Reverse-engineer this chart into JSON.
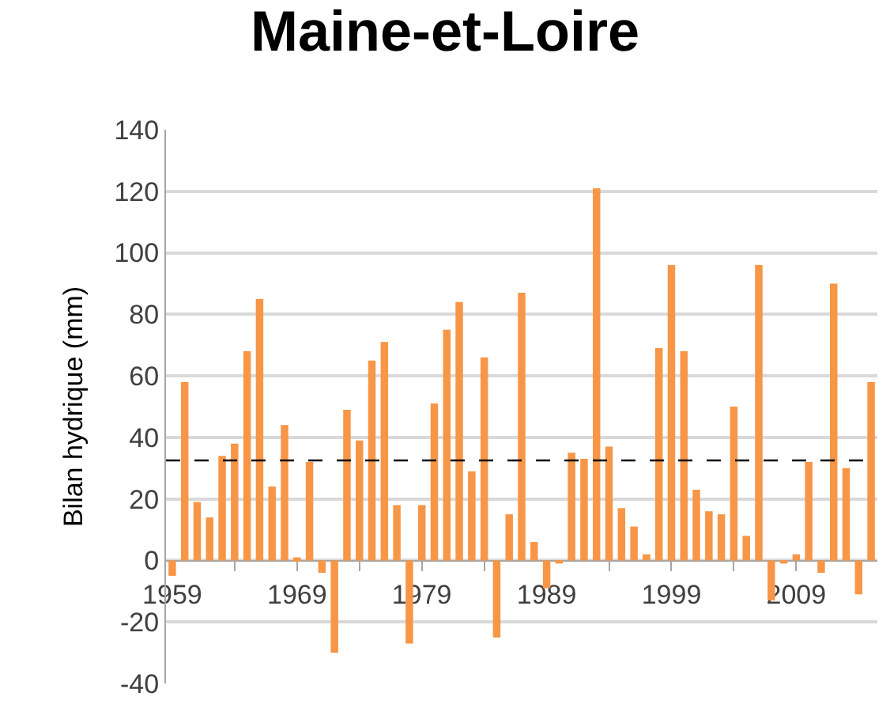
{
  "chart_data": {
    "type": "bar",
    "title": "Maine-et-Loire",
    "ylabel": "Bilan hydrique (mm)",
    "x": [
      1959,
      1960,
      1961,
      1962,
      1963,
      1964,
      1965,
      1966,
      1967,
      1968,
      1969,
      1970,
      1971,
      1972,
      1973,
      1974,
      1975,
      1976,
      1977,
      1978,
      1979,
      1980,
      1981,
      1982,
      1983,
      1984,
      1985,
      1986,
      1987,
      1988,
      1989,
      1990,
      1991,
      1992,
      1993,
      1994,
      1995,
      1996,
      1997,
      1998,
      1999,
      2000,
      2001,
      2002,
      2003,
      2004,
      2005,
      2006,
      2007,
      2008,
      2009,
      2010,
      2011,
      2012,
      2013,
      2014,
      2015
    ],
    "series": [
      {
        "color": "#f79646",
        "values": [
          -5,
          58,
          19,
          14,
          34,
          38,
          68,
          85,
          24,
          44,
          1,
          32,
          -4,
          -30,
          49,
          39,
          65,
          71,
          18,
          -27,
          18,
          51,
          75,
          84,
          29,
          66,
          -25,
          15,
          87,
          6,
          -9,
          -1,
          35,
          33,
          121,
          37,
          17,
          11,
          2,
          69,
          96,
          68,
          23,
          16,
          15,
          50,
          8,
          96,
          -13,
          -1,
          2,
          32,
          -4,
          90,
          30,
          -11,
          58
        ]
      }
    ],
    "xlim": [
      1958.5,
      2015.5
    ],
    "xticks": [
      {
        "value": 1959,
        "label": "1959"
      },
      {
        "value": 1964,
        "label": null
      },
      {
        "value": 1969,
        "label": "1969"
      },
      {
        "value": 1974,
        "label": null
      },
      {
        "value": 1979,
        "label": "1979"
      },
      {
        "value": 1984,
        "label": null
      },
      {
        "value": 1989,
        "label": "1989"
      },
      {
        "value": 1994,
        "label": null
      },
      {
        "value": 1999,
        "label": "1999"
      },
      {
        "value": 2004,
        "label": null
      },
      {
        "value": 2009,
        "label": "2009"
      },
      {
        "value": 2014,
        "label": null
      }
    ],
    "ylim": [
      -40,
      140
    ],
    "yticks": [
      -40,
      -20,
      0,
      20,
      40,
      60,
      80,
      100,
      120,
      140
    ],
    "grid": "y",
    "ref_lines": [
      {
        "axis": "y",
        "value": 32.5,
        "color": "#000000",
        "line_style": "dashed"
      }
    ]
  }
}
